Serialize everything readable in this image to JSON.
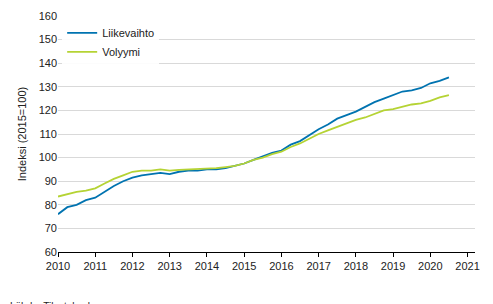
{
  "chart_data": {
    "type": "line",
    "y_label": "Indeksi (2015=100)",
    "source": "Lähde: Tilastokeskus",
    "x": [
      2010.0,
      2010.25,
      2010.5,
      2010.75,
      2011.0,
      2011.25,
      2011.5,
      2011.75,
      2012.0,
      2012.25,
      2012.5,
      2012.75,
      2013.0,
      2013.25,
      2013.5,
      2013.75,
      2014.0,
      2014.25,
      2014.5,
      2014.75,
      2015.0,
      2015.25,
      2015.5,
      2015.75,
      2016.0,
      2016.25,
      2016.5,
      2016.75,
      2017.0,
      2017.25,
      2017.5,
      2017.75,
      2018.0,
      2018.25,
      2018.5,
      2018.75,
      2019.0,
      2019.25,
      2019.5,
      2019.75,
      2020.0,
      2020.25,
      2020.5
    ],
    "series": [
      {
        "name": "Liikevaihto",
        "color": "#0073b0",
        "values": [
          76,
          79,
          80,
          82,
          83,
          85.5,
          88,
          90,
          91.5,
          92.5,
          93,
          93.5,
          93,
          94,
          94.5,
          94.5,
          95,
          95,
          95.5,
          96.5,
          97.5,
          99,
          100.5,
          102,
          103,
          105.5,
          107,
          109.5,
          112,
          114,
          116.5,
          118,
          119.5,
          121.5,
          123.5,
          125,
          126.5,
          128,
          128.5,
          129.5,
          131.5,
          132.5,
          134
        ]
      },
      {
        "name": "Volyymi",
        "color": "#b5d334",
        "values": [
          83.5,
          84.5,
          85.5,
          86,
          87,
          89,
          91,
          92.5,
          94,
          94.5,
          94.5,
          95,
          94.5,
          94.8,
          95,
          95,
          95.5,
          95.5,
          96,
          96.5,
          97.5,
          99,
          100,
          101.5,
          102.5,
          104.5,
          106,
          108,
          110,
          111.5,
          113,
          114.5,
          116,
          117,
          118.5,
          120,
          120.5,
          121.5,
          122.5,
          123,
          124,
          125.5,
          126.5
        ]
      }
    ],
    "xlim": [
      2010,
      2021.2
    ],
    "xticks": [
      2010,
      2011,
      2012,
      2013,
      2014,
      2015,
      2016,
      2017,
      2018,
      2019,
      2020,
      2021
    ],
    "ylim": [
      60,
      160
    ],
    "yticks": [
      60,
      70,
      80,
      90,
      100,
      110,
      120,
      130,
      140,
      150,
      160
    ],
    "grid": true,
    "legend": "top-left"
  }
}
